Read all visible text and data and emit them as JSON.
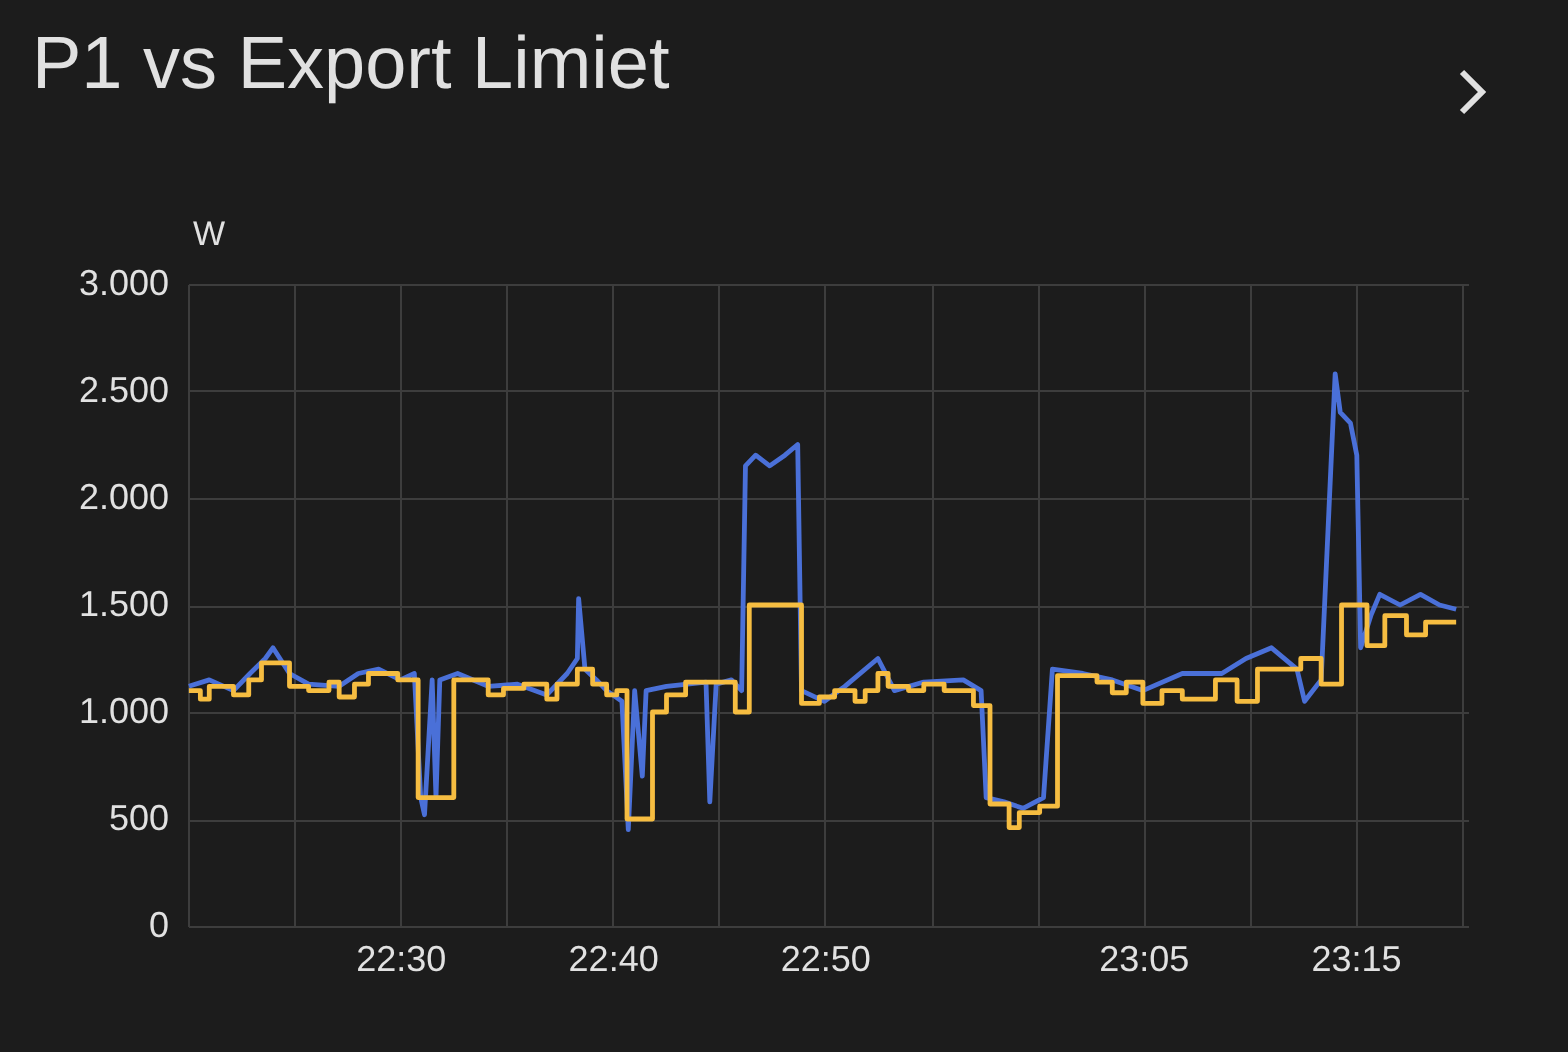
{
  "chart_data": {
    "type": "line",
    "title": "P1 vs Export Limiet",
    "ylabel": "W",
    "grid": true,
    "marker": "none",
    "line_style": "solid",
    "xlim": [
      22.3333,
      23.3383
    ],
    "xticks": [
      {
        "value": 22.3333,
        "label": null
      },
      {
        "value": 22.4167,
        "label": null
      },
      {
        "value": 22.5,
        "label": "22:30"
      },
      {
        "value": 22.5833,
        "label": null
      },
      {
        "value": 22.6667,
        "label": "22:40"
      },
      {
        "value": 22.75,
        "label": null
      },
      {
        "value": 22.8333,
        "label": "22:50"
      },
      {
        "value": 22.9167,
        "label": null
      },
      {
        "value": 23.0,
        "label": null
      },
      {
        "value": 23.0833,
        "label": "23:05"
      },
      {
        "value": 23.1667,
        "label": null
      },
      {
        "value": 23.25,
        "label": "23:15"
      },
      {
        "value": 23.3333,
        "label": null
      }
    ],
    "ylim": [
      0,
      3000
    ],
    "yticks": [
      0,
      500,
      {
        "value": 1000,
        "label": "1.000"
      },
      {
        "value": 1500,
        "label": "1.500"
      },
      {
        "value": 2000,
        "label": "2.000"
      },
      {
        "value": 2500,
        "label": "2.500"
      },
      {
        "value": 3000,
        "label": "3.000"
      }
    ],
    "series": [
      {
        "type": "line",
        "color": "#4a70d8",
        "x": [
          22.334,
          22.35,
          22.369,
          22.382,
          22.394,
          22.4,
          22.413,
          22.428,
          22.452,
          22.467,
          22.483,
          22.5,
          22.511,
          22.516,
          22.519,
          22.525,
          22.528,
          22.531,
          22.545,
          22.569,
          22.592,
          22.615,
          22.631,
          22.639,
          22.64,
          22.645,
          22.654,
          22.662,
          22.674,
          22.679,
          22.684,
          22.69,
          22.693,
          22.709,
          22.74,
          22.743,
          22.748,
          22.76,
          22.768,
          22.771,
          22.779,
          22.79,
          22.802,
          22.812,
          22.815,
          22.833,
          22.849,
          22.875,
          22.888,
          22.911,
          22.942,
          22.956,
          22.96,
          22.974,
          22.989,
          23.005,
          23.012,
          23.036,
          23.059,
          23.083,
          23.114,
          23.145,
          23.164,
          23.184,
          23.204,
          23.21,
          23.223,
          23.234,
          23.238,
          23.246,
          23.251,
          23.254,
          23.262,
          23.269,
          23.285,
          23.301,
          23.316,
          23.329
        ],
        "values": [
          1120,
          1150,
          1100,
          1180,
          1250,
          1300,
          1180,
          1130,
          1120,
          1180,
          1200,
          1150,
          1180,
          600,
          520,
          1150,
          600,
          1150,
          1180,
          1120,
          1130,
          1080,
          1180,
          1250,
          1530,
          1200,
          1150,
          1100,
          1050,
          450,
          1100,
          700,
          1100,
          1120,
          1140,
          580,
          1130,
          1150,
          1100,
          2150,
          2200,
          2150,
          2200,
          2250,
          1100,
          1050,
          1120,
          1250,
          1100,
          1140,
          1150,
          1100,
          600,
          580,
          550,
          600,
          1200,
          1180,
          1150,
          1100,
          1180,
          1180,
          1250,
          1300,
          1200,
          1050,
          1150,
          2580,
          2400,
          2350,
          2200,
          1300,
          1450,
          1550,
          1500,
          1550,
          1500,
          1480
        ]
      },
      {
        "type": "step",
        "color": "#f6bd41",
        "x": [
          22.334,
          22.343,
          22.35,
          22.369,
          22.381,
          22.391,
          22.413,
          22.428,
          22.444,
          22.452,
          22.464,
          22.475,
          22.498,
          22.514,
          22.542,
          22.569,
          22.581,
          22.597,
          22.615,
          22.623,
          22.639,
          22.651,
          22.662,
          22.67,
          22.678,
          22.698,
          22.709,
          22.724,
          22.763,
          22.774,
          22.815,
          22.829,
          22.841,
          22.857,
          22.865,
          22.875,
          22.883,
          22.899,
          22.911,
          22.927,
          22.95,
          22.963,
          22.978,
          22.986,
          23.002,
          23.016,
          23.047,
          23.059,
          23.07,
          23.083,
          23.098,
          23.114,
          23.14,
          23.157,
          23.173,
          23.207,
          23.223,
          23.239,
          23.259,
          23.273,
          23.29,
          23.305,
          23.329
        ],
        "values": [
          1100,
          1060,
          1120,
          1080,
          1150,
          1230,
          1120,
          1100,
          1140,
          1070,
          1130,
          1180,
          1150,
          600,
          1150,
          1080,
          1110,
          1130,
          1060,
          1130,
          1200,
          1130,
          1080,
          1100,
          500,
          1000,
          1080,
          1140,
          1000,
          1500,
          1040,
          1070,
          1100,
          1050,
          1100,
          1180,
          1120,
          1100,
          1130,
          1100,
          1030,
          570,
          460,
          530,
          560,
          1170,
          1140,
          1090,
          1140,
          1040,
          1100,
          1060,
          1150,
          1050,
          1200,
          1250,
          1130,
          1500,
          1310,
          1450,
          1360,
          1420,
          1420
        ]
      }
    ]
  }
}
